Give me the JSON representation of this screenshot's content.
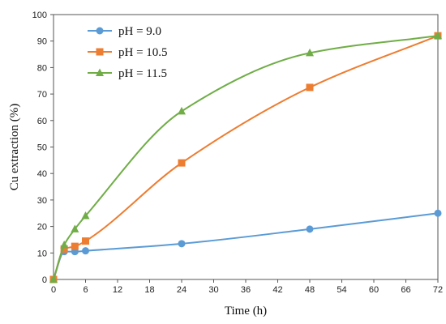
{
  "chart_data": {
    "type": "line",
    "title": "",
    "xlabel": "Time (h)",
    "ylabel": "Cu extraction (%)",
    "xlim": [
      0,
      72
    ],
    "ylim": [
      0,
      100
    ],
    "xticks": [
      0,
      6,
      12,
      18,
      24,
      30,
      36,
      42,
      48,
      54,
      60,
      66,
      72
    ],
    "yticks": [
      0,
      10,
      20,
      30,
      40,
      50,
      60,
      70,
      80,
      90,
      100
    ],
    "grid": false,
    "legend_position": "top-left",
    "series": [
      {
        "name": "pH = 9.0",
        "marker": "circle",
        "color": "#5B9BD5",
        "x": [
          0,
          2,
          4,
          6,
          24,
          48,
          72
        ],
        "y": [
          0,
          10.5,
          10.5,
          10.8,
          13.5,
          19,
          25
        ]
      },
      {
        "name": "pH = 10.5",
        "marker": "square",
        "color": "#ED7D31",
        "x": [
          0,
          2,
          4,
          6,
          24,
          48,
          72
        ],
        "y": [
          0,
          11.5,
          12.5,
          14.5,
          44,
          72.5,
          92
        ]
      },
      {
        "name": "pH = 11.5",
        "marker": "triangle",
        "color": "#70AD47",
        "x": [
          0,
          2,
          4,
          6,
          24,
          48,
          72
        ],
        "y": [
          0,
          13,
          19,
          24,
          63.5,
          85.5,
          92
        ]
      }
    ]
  }
}
